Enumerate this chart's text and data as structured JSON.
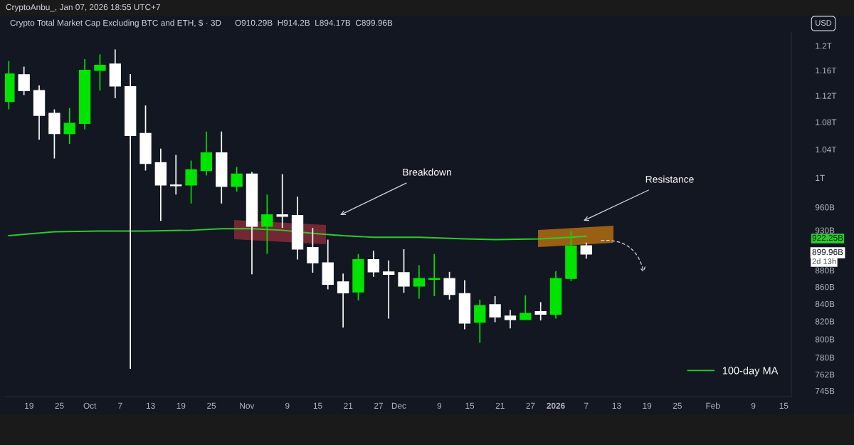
{
  "chart_data": {
    "type": "candlestick",
    "title": "Crypto Total Market Cap Excluding BTC and ETH, $ · 3D",
    "subtitle": "O910.29B  H914.2B  L894.17B  C899.96B",
    "x": [
      "2025-09-15",
      "2025-09-18",
      "2025-09-21",
      "2025-09-24",
      "2025-09-27",
      "2025-09-30",
      "2025-10-03",
      "2025-10-06",
      "2025-10-09",
      "2025-10-12",
      "2025-10-15",
      "2025-10-18",
      "2025-10-21",
      "2025-10-24",
      "2025-10-27",
      "2025-10-30",
      "2025-11-02",
      "2025-11-05",
      "2025-11-08",
      "2025-11-11",
      "2025-11-14",
      "2025-11-17",
      "2025-11-20",
      "2025-11-23",
      "2025-11-26",
      "2025-11-29",
      "2025-12-02",
      "2025-12-05",
      "2025-12-08",
      "2025-12-11",
      "2025-12-14",
      "2025-12-17",
      "2025-12-20",
      "2025-12-23",
      "2025-12-26",
      "2025-12-29",
      "2026-01-01",
      "2026-01-04",
      "2026-01-07"
    ],
    "ohlc": [
      [
        1111000000000.0,
        1175000000000.0,
        1099000000000.0,
        1154000000000.0
      ],
      [
        1153000000000.0,
        1166000000000.0,
        1121000000000.0,
        1128000000000.0
      ],
      [
        1128000000000.0,
        1136000000000.0,
        1054000000000.0,
        1090000000000.0
      ],
      [
        1093000000000.0,
        1099000000000.0,
        1027000000000.0,
        1063000000000.0
      ],
      [
        1063000000000.0,
        1101000000000.0,
        1048000000000.0,
        1078000000000.0
      ],
      [
        1078000000000.0,
        1178000000000.0,
        1069000000000.0,
        1160000000000.0
      ],
      [
        1160000000000.0,
        1186000000000.0,
        1128000000000.0,
        1168000000000.0
      ],
      [
        1170000000000.0,
        1194000000000.0,
        1116000000000.0,
        1135000000000.0
      ],
      [
        1134000000000.0,
        1154000000000.0,
        768000000000.0,
        1060000000000.0
      ],
      [
        1063000000000.0,
        1105000000000.0,
        1010000000000.0,
        1020000000000.0
      ],
      [
        1021000000000.0,
        1041000000000.0,
        942000000000.0,
        990000000000.0
      ],
      [
        990000000000.0,
        1032000000000.0,
        977000000000.0,
        989000000000.0
      ],
      [
        990000000000.0,
        1024000000000.0,
        965000000000.0,
        1011000000000.0
      ],
      [
        1010000000000.0,
        1066000000000.0,
        1003000000000.0,
        1035000000000.0
      ],
      [
        1035000000000.0,
        1066000000000.0,
        965000000000.0,
        988000000000.0
      ],
      [
        988000000000.0,
        1015000000000.0,
        981000000000.0,
        1005000000000.0
      ],
      [
        1005000000000.0,
        1008000000000.0,
        875000000000.0,
        935000000000.0
      ],
      [
        935000000000.0,
        977000000000.0,
        900000000000.0,
        950000000000.0
      ],
      [
        950000000000.0,
        1005000000000.0,
        933000000000.0,
        948000000000.0
      ],
      [
        949000000000.0,
        974000000000.0,
        893000000000.0,
        906000000000.0
      ],
      [
        908000000000.0,
        933000000000.0,
        877000000000.0,
        889000000000.0
      ],
      [
        889000000000.0,
        918000000000.0,
        857000000000.0,
        863000000000.0
      ],
      [
        866000000000.0,
        876000000000.0,
        813000000000.0,
        853000000000.0
      ],
      [
        854000000000.0,
        900000000000.0,
        844000000000.0,
        893000000000.0
      ],
      [
        893000000000.0,
        904000000000.0,
        872000000000.0,
        878000000000.0
      ],
      [
        878000000000.0,
        892000000000.0,
        823000000000.0,
        875000000000.0
      ],
      [
        877000000000.0,
        906000000000.0,
        853000000000.0,
        861000000000.0
      ],
      [
        861000000000.0,
        886000000000.0,
        846000000000.0,
        870000000000.0
      ],
      [
        869000000000.0,
        900000000000.0,
        849000000000.0,
        870000000000.0
      ],
      [
        870000000000.0,
        878000000000.0,
        845000000000.0,
        851000000000.0
      ],
      [
        852000000000.0,
        868000000000.0,
        811000000000.0,
        818000000000.0
      ],
      [
        819000000000.0,
        845000000000.0,
        796000000000.0,
        838000000000.0
      ],
      [
        839000000000.0,
        849000000000.0,
        819000000000.0,
        825000000000.0
      ],
      [
        826000000000.0,
        833000000000.0,
        812000000000.0,
        822000000000.0
      ],
      [
        822000000000.0,
        850000000000.0,
        822000000000.0,
        829000000000.0
      ],
      [
        831000000000.0,
        842000000000.0,
        821000000000.0,
        828000000000.0
      ],
      [
        828000000000.0,
        879000000000.0,
        823000000000.0,
        870000000000.0
      ],
      [
        870000000000.0,
        929000000000.0,
        867000000000.0,
        910000000000.0
      ],
      [
        910290000000.0,
        914200000000.0,
        894170000000.0,
        899960000000.0
      ]
    ],
    "colors": [
      "#00e400",
      "#ffffff",
      "#ffffff",
      "#ffffff",
      "#00e400",
      "#00e400",
      "#00e400",
      "#ffffff",
      "#ffffff",
      "#ffffff",
      "#ffffff",
      "#ffffff",
      "#00e400",
      "#00e400",
      "#ffffff",
      "#00e400",
      "#ffffff",
      "#00e400",
      "#ffffff",
      "#ffffff",
      "#ffffff",
      "#ffffff",
      "#ffffff",
      "#00e400",
      "#ffffff",
      "#ffffff",
      "#ffffff",
      "#00e400",
      "#00e400",
      "#ffffff",
      "#ffffff",
      "#00e400",
      "#ffffff",
      "#ffffff",
      "#00e400",
      "#ffffff",
      "#00e400",
      "#00e400",
      "#ffffff"
    ],
    "series": [
      {
        "name": "100-day MA",
        "type": "line",
        "color": "#2ccc2c",
        "x": [
          "2025-09-15",
          "2025-09-24",
          "2025-10-03",
          "2025-10-12",
          "2025-10-21",
          "2025-10-27",
          "2025-11-02",
          "2025-11-08",
          "2025-11-14",
          "2025-11-20",
          "2025-11-26",
          "2025-12-05",
          "2025-12-14",
          "2025-12-20",
          "2025-12-29",
          "2026-01-04",
          "2026-01-07"
        ],
        "values": [
          923000000000.0,
          928000000000.0,
          929000000000.0,
          929000000000.0,
          930000000000.0,
          932000000000.0,
          932000000000.0,
          930000000000.0,
          926000000000.0,
          923000000000.0,
          921000000000.0,
          921000000000.0,
          919000000000.0,
          918000000000.0,
          919000000000.0,
          921000000000.0,
          922250000000.0
        ]
      }
    ],
    "annotations": [
      "CryptoAnbu_, Jan 07, 2026 18:55 UTC+7",
      "USD",
      "Breakdown",
      "Resistance",
      "922.25B",
      "899.96B",
      "2d 13h"
    ],
    "log": "y",
    "grid": false,
    "legend": "bottom right",
    "line_style": "solid",
    "marker": "none",
    "xlim": [
      "2025-09-14T06:00",
      "2026-02-16T12:00"
    ],
    "ylim": [
      739000000000.0,
      1223000000000.0
    ],
    "xticks": [
      {
        "value": "2025-09-19",
        "label": "19"
      },
      {
        "value": "2025-09-25",
        "label": "25"
      },
      {
        "value": "2025-10-01",
        "label": "Oct"
      },
      {
        "value": "2025-10-07",
        "label": "7"
      },
      {
        "value": "2025-10-13",
        "label": "13"
      },
      {
        "value": "2025-10-19",
        "label": "19"
      },
      {
        "value": "2025-10-25",
        "label": "25"
      },
      {
        "value": "2025-11-01",
        "label": "Nov"
      },
      {
        "value": "2025-11-09",
        "label": "9"
      },
      {
        "value": "2025-11-15",
        "label": "15"
      },
      {
        "value": "2025-11-21",
        "label": "21"
      },
      {
        "value": "2025-11-27",
        "label": "27"
      },
      {
        "value": "2025-12-01",
        "label": "Dec"
      },
      {
        "value": "2025-12-09",
        "label": "9"
      },
      {
        "value": "2025-12-15",
        "label": "15"
      },
      {
        "value": "2025-12-21",
        "label": "21"
      },
      {
        "value": "2025-12-27",
        "label": "27"
      },
      {
        "value": "2026-01-01",
        "label": "2026"
      },
      {
        "value": "2026-01-07",
        "label": "7"
      },
      {
        "value": "2026-01-13",
        "label": "13"
      },
      {
        "value": "2026-01-19",
        "label": "19"
      },
      {
        "value": "2026-01-25",
        "label": "25"
      },
      {
        "value": "2026-02-01",
        "label": "Feb"
      },
      {
        "value": "2026-02-09",
        "label": "9"
      },
      {
        "value": "2026-02-15",
        "label": "15"
      }
    ],
    "yticks": [
      {
        "value": 745000000000.0,
        "label": "745B"
      },
      {
        "value": 762000000000.0,
        "label": "762B"
      },
      {
        "value": 780000000000.0,
        "label": "780B"
      },
      {
        "value": 800000000000.0,
        "label": "800B"
      },
      {
        "value": 820000000000.0,
        "label": "820B"
      },
      {
        "value": 840000000000.0,
        "label": "840B"
      },
      {
        "value": 860000000000.0,
        "label": "860B"
      },
      {
        "value": 880000000000.0,
        "label": "880B"
      },
      {
        "value": 930000000000.0,
        "label": "930B"
      },
      {
        "value": 960000000000.0,
        "label": "960B"
      },
      {
        "value": 1000000000000.0,
        "label": "1T"
      },
      {
        "value": 1040000000000.0,
        "label": "1.04T"
      },
      {
        "value": 1080000000000.0,
        "label": "1.08T"
      },
      {
        "value": 1120000000000.0,
        "label": "1.12T"
      },
      {
        "value": 1160000000000.0,
        "label": "1.16T"
      },
      {
        "value": 1200000000000.0,
        "label": "1.2T"
      }
    ]
  }
}
